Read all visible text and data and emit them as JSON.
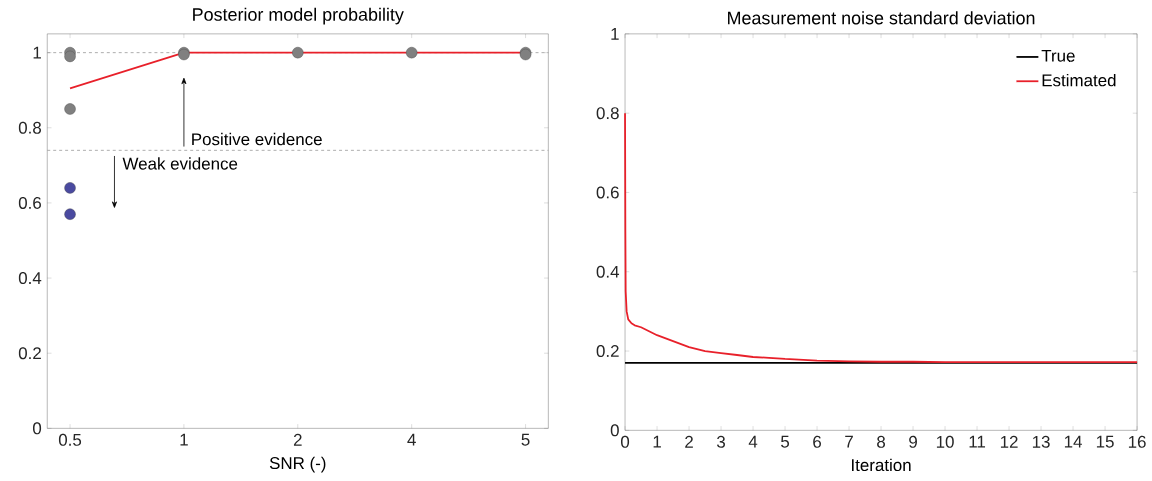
{
  "chart_data": [
    {
      "type": "scatter",
      "title": "Posterior model probability",
      "xlabel": "SNR (-)",
      "categories": [
        "0.5",
        "1",
        "2",
        "4",
        "5"
      ],
      "ylim": [
        0,
        1.05
      ],
      "yticks": [
        0,
        0.2,
        0.4,
        0.6,
        0.8,
        1
      ],
      "marker": "circle",
      "grid": false,
      "legend": false,
      "series": [
        {
          "type": "line",
          "color": "#e8202a",
          "x": [
            "0.5",
            "1",
            "2",
            "4",
            "5"
          ],
          "values": [
            0.905,
            1.0,
            1.0,
            1.0,
            1.0
          ],
          "marker": "none"
        },
        {
          "type": "scatter",
          "color": "#808080",
          "x": [
            "0.5",
            "0.5",
            "0.5",
            "1",
            "1",
            "2",
            "4",
            "5",
            "5"
          ],
          "values": [
            1.0,
            0.99,
            0.85,
            1.0,
            0.995,
            1.0,
            1.0,
            1.0,
            0.995
          ]
        },
        {
          "type": "scatter",
          "color": "#4a4aa0",
          "x": [
            "0.5",
            "0.5"
          ],
          "values": [
            0.64,
            0.57
          ]
        }
      ],
      "ref_lines": [
        {
          "axis": "y",
          "value": 1,
          "color": "#999999",
          "line_style": "dashed"
        },
        {
          "axis": "y",
          "value": 0.74,
          "color": "#999999",
          "line_style": "dashed"
        }
      ],
      "annotations": [
        "Positive evidence",
        "Weak evidence"
      ]
    },
    {
      "type": "line",
      "title": "Measurement noise standard deviation",
      "xlabel": "Iteration",
      "xlim": [
        0,
        16
      ],
      "xticks": [
        0,
        1,
        2,
        3,
        4,
        5,
        6,
        7,
        8,
        9,
        10,
        11,
        12,
        13,
        14,
        15,
        16
      ],
      "ylim": [
        0,
        1
      ],
      "yticks": [
        0,
        0.2,
        0.4,
        0.6,
        0.8,
        1
      ],
      "grid": false,
      "legend": "top right",
      "marker": "none",
      "line_style": "solid",
      "series": [
        {
          "name": "True",
          "color": "#000000",
          "x": [
            0,
            16
          ],
          "values": [
            0.17,
            0.17
          ]
        },
        {
          "name": "Estimated",
          "color": "#e8202a",
          "x": [
            0,
            0.01,
            0.02,
            0.05,
            0.1,
            0.2,
            0.3,
            0.5,
            0.75,
            1,
            1.5,
            2,
            2.5,
            3,
            3.5,
            4,
            4.5,
            5,
            5.5,
            6,
            7,
            8,
            9,
            10,
            11,
            12,
            13,
            14,
            15,
            16
          ],
          "values": [
            0.8,
            0.5,
            0.35,
            0.3,
            0.28,
            0.27,
            0.265,
            0.26,
            0.25,
            0.24,
            0.225,
            0.21,
            0.2,
            0.195,
            0.19,
            0.185,
            0.183,
            0.18,
            0.178,
            0.176,
            0.174,
            0.173,
            0.173,
            0.172,
            0.172,
            0.172,
            0.172,
            0.172,
            0.172,
            0.172
          ]
        }
      ]
    }
  ]
}
